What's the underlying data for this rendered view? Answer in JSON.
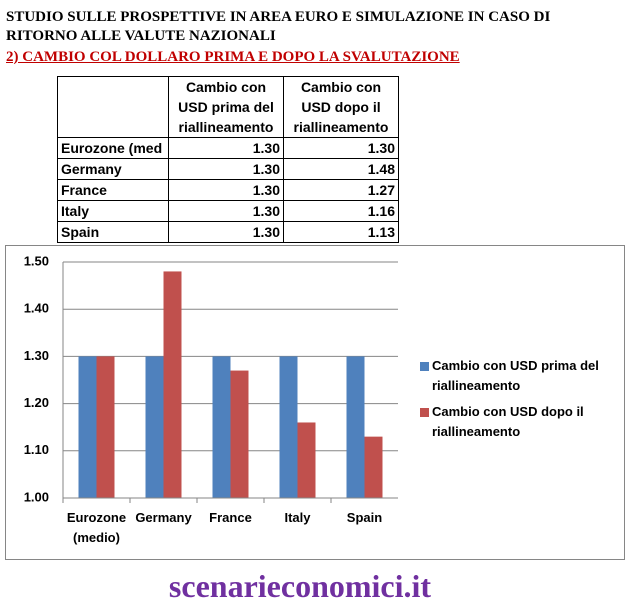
{
  "header": {
    "title": "STUDIO SULLE PROSPETTIVE IN AREA EURO E SIMULAZIONE IN CASO DI RITORNO ALLE VALUTE NAZIONALI",
    "subtitle": "2) CAMBIO COL DOLLARO PRIMA E DOPO LA SVALUTAZIONE"
  },
  "table": {
    "columns": [
      "Cambio con USD prima del riallineamento",
      "Cambio con USD dopo il riallineamento"
    ],
    "rows": [
      [
        "Eurozone (med",
        "1.30",
        "1.30"
      ],
      [
        "Germany",
        "1.30",
        "1.48"
      ],
      [
        "France",
        "1.30",
        "1.27"
      ],
      [
        "Italy",
        "1.30",
        "1.16"
      ],
      [
        "Spain",
        "1.30",
        "1.13"
      ]
    ]
  },
  "chart_data": {
    "type": "bar",
    "categories": [
      "Eurozone (medio)",
      "Germany",
      "France",
      "Italy",
      "Spain"
    ],
    "series": [
      {
        "name": "Cambio con USD prima del riallineamento",
        "color": "#4f81bd",
        "values": [
          1.3,
          1.3,
          1.3,
          1.3,
          1.3
        ]
      },
      {
        "name": "Cambio con USD dopo il riallineamento",
        "color": "#c0504d",
        "values": [
          1.3,
          1.48,
          1.27,
          1.16,
          1.13
        ]
      }
    ],
    "ylim": [
      1.0,
      1.5
    ],
    "yticks": [
      {
        "value": 1.0,
        "label": "1.00"
      },
      {
        "value": 1.1,
        "label": "1.10"
      },
      {
        "value": 1.2,
        "label": "1.20"
      },
      {
        "value": 1.3,
        "label": "1.30"
      },
      {
        "value": 1.4,
        "label": "1.40"
      },
      {
        "value": 1.5,
        "label": "1.50"
      }
    ],
    "grid": true,
    "legend": "right"
  },
  "footer": {
    "watermark": "scenarieconomici.it"
  }
}
